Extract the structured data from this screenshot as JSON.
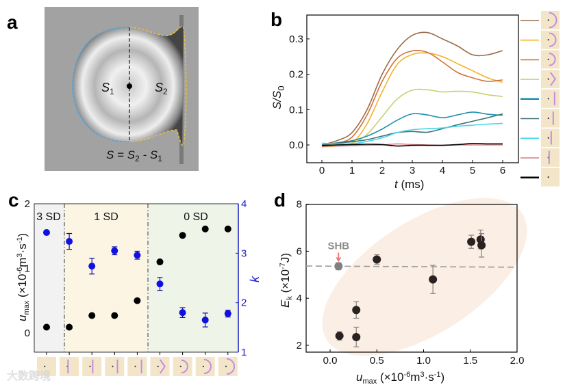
{
  "panels": {
    "a": "a",
    "b": "b",
    "c": "c",
    "d": "d"
  },
  "panel_a": {
    "s1": "S",
    "s1_sub": "1",
    "s2": "S",
    "s2_sub": "2",
    "formula_s": "S = S",
    "formula_sub2": "2",
    "formula_mid": " - S",
    "formula_sub1": "1",
    "colors": {
      "left_outline": "#4aa3e0",
      "right_outline": "#e8c040"
    }
  },
  "watermark": "大数跨境",
  "chart_data": [
    {
      "id": "b",
      "type": "line",
      "xlabel_italic": "t",
      "xlabel_rest": " (ms)",
      "ylabel_main": "S/S",
      "ylabel_sub": "0",
      "xlim": [
        -0.5,
        6.5
      ],
      "ylim": [
        -0.05,
        0.36
      ],
      "xticks": [
        "0",
        "1",
        "2",
        "3",
        "4",
        "5",
        "6"
      ],
      "yticks": [
        "0.0",
        "0.1",
        "0.2",
        "0.3"
      ],
      "x": [
        0,
        0.5,
        1,
        1.5,
        2,
        2.5,
        3,
        3.5,
        4,
        4.5,
        5,
        5.5,
        6
      ],
      "series": [
        {
          "name": "arc-large",
          "color": "#9c6b47",
          "values": [
            0,
            0.012,
            0.035,
            0.1,
            0.2,
            0.27,
            0.31,
            0.318,
            0.3,
            0.28,
            0.255,
            0.255,
            0.267
          ]
        },
        {
          "name": "arc",
          "color": "#f4b128",
          "values": [
            -0.005,
            -0.003,
            0.005,
            0.06,
            0.15,
            0.228,
            0.256,
            0.26,
            0.25,
            0.23,
            0.21,
            0.19,
            0.177
          ]
        },
        {
          "name": "arc-small",
          "color": "#cf7236",
          "values": [
            -0.005,
            0.005,
            0.022,
            0.085,
            0.18,
            0.245,
            0.266,
            0.262,
            0.235,
            0.205,
            0.19,
            0.18,
            0.184
          ]
        },
        {
          "name": "chevron",
          "color": "#c9cf72",
          "values": [
            0,
            0.003,
            0.005,
            0.03,
            0.08,
            0.13,
            0.155,
            0.156,
            0.15,
            0.152,
            0.15,
            0.142,
            0.137
          ]
        },
        {
          "name": "line-far",
          "color": "#1e8fae",
          "values": [
            0,
            0.006,
            0.012,
            0.025,
            0.045,
            0.07,
            0.088,
            0.085,
            0.077,
            0.085,
            0.093,
            0.087,
            0.084
          ]
        },
        {
          "name": "line",
          "color": "#3f7075",
          "values": [
            0,
            0.005,
            0.009,
            0.015,
            0.025,
            0.035,
            0.038,
            0.036,
            0.046,
            0.057,
            0.067,
            0.077,
            0.088
          ]
        },
        {
          "name": "line-near",
          "color": "#45d6ea",
          "values": [
            0.005,
            0.003,
            0.003,
            0.01,
            0.02,
            0.035,
            0.043,
            0.046,
            0.048,
            0.053,
            0.056,
            0.059,
            0.061
          ]
        },
        {
          "name": "line-on",
          "color": "#e08585",
          "values": [
            -0.004,
            -0.003,
            -0.002,
            -0.001,
            0,
            0.003,
            0.001,
            0,
            -0.001,
            0,
            0,
            0,
            0
          ]
        },
        {
          "name": "dot-only",
          "color": "#000000",
          "values": [
            -0.002,
            0,
            0.001,
            0.002,
            0.001,
            -0.003,
            -0.001,
            -0.001,
            -0.001,
            0.001,
            0.004,
            0.003,
            0.003
          ]
        }
      ]
    },
    {
      "id": "c",
      "type": "scatter",
      "ylabel_main": "u",
      "ylabel_sub": "max",
      "ylabel_rest": " (×10",
      "ylabel_sup1": "-6",
      "ylabel_rest2": "m",
      "ylabel_sup2": "3",
      "ylabel_rest3": "·s",
      "ylabel_sup3": "-1",
      "ylabel_end": ")",
      "y2label": "k",
      "ylim": [
        -0.3,
        2
      ],
      "y2lim": [
        1,
        4
      ],
      "yticks": [
        "0",
        "1",
        "2"
      ],
      "y2ticks": [
        "1",
        "2",
        "3",
        "4"
      ],
      "regions": [
        {
          "label": "3 SD",
          "color": "#f2f2f2",
          "from": 0,
          "to": 1
        },
        {
          "label": "1 SD",
          "color": "#fdf5e4",
          "from": 1,
          "to": 5
        },
        {
          "label": "0 SD",
          "color": "#eef4e8",
          "from": 5,
          "to": 9
        }
      ],
      "categories": [
        "dot-only",
        "line-on",
        "line-near",
        "line",
        "line-far",
        "chevron",
        "arc-small",
        "arc",
        "arc-large"
      ],
      "series": [
        {
          "name": "u_max",
          "axis": "left",
          "color": "#000000",
          "values": [
            0.09,
            0.09,
            0.27,
            0.27,
            0.5,
            1.1,
            1.51,
            1.61,
            1.61
          ]
        },
        {
          "name": "k",
          "axis": "right",
          "color": "#1010e0",
          "values": [
            3.42,
            3.24,
            2.74,
            3.05,
            2.96,
            2.38,
            1.8,
            1.65,
            1.78
          ],
          "errors": [
            0.03,
            0.16,
            0.16,
            0.08,
            0.08,
            0.13,
            0.1,
            0.14,
            0.07
          ]
        }
      ]
    },
    {
      "id": "d",
      "type": "scatter",
      "xlabel_main": "u",
      "xlabel_sub": "max",
      "xlabel_rest": " (×10",
      "xlabel_sup1": "-6",
      "xlabel_rest2": "m",
      "xlabel_sup2": "3",
      "xlabel_rest3": "·s",
      "xlabel_sup3": "-1",
      "xlabel_end": ")",
      "ylabel_main": "E",
      "ylabel_sub": "k",
      "ylabel_rest": " (×10",
      "ylabel_sup": "-7",
      "ylabel_end": "J)",
      "xlim": [
        -0.25,
        2.0
      ],
      "ylim": [
        1.7,
        8
      ],
      "xticks": [
        "0.0",
        "0.5",
        "1.0",
        "1.5",
        "2.0"
      ],
      "yticks": [
        "2",
        "4",
        "6",
        "8"
      ],
      "annotation": "SHB",
      "reference_line": 5.35,
      "points": [
        {
          "x": 0.09,
          "y": 5.36,
          "err": 0.15,
          "color": "#808080",
          "label": "SHB"
        },
        {
          "x": 0.1,
          "y": 2.4,
          "err": 0.18,
          "color": "#2a2221"
        },
        {
          "x": 0.28,
          "y": 2.35,
          "err": 0.42,
          "color": "#2a2221"
        },
        {
          "x": 0.28,
          "y": 3.5,
          "err": 0.35,
          "color": "#2a2221"
        },
        {
          "x": 0.5,
          "y": 5.65,
          "err": 0.2,
          "color": "#2a2221"
        },
        {
          "x": 1.1,
          "y": 4.8,
          "err": 0.6,
          "color": "#2a2221"
        },
        {
          "x": 1.51,
          "y": 6.4,
          "err": 0.28,
          "color": "#2a2221"
        },
        {
          "x": 1.61,
          "y": 6.5,
          "err": 0.4,
          "color": "#2a2221"
        },
        {
          "x": 1.62,
          "y": 6.25,
          "err": 0.5,
          "color": "#2a2221"
        }
      ]
    }
  ]
}
